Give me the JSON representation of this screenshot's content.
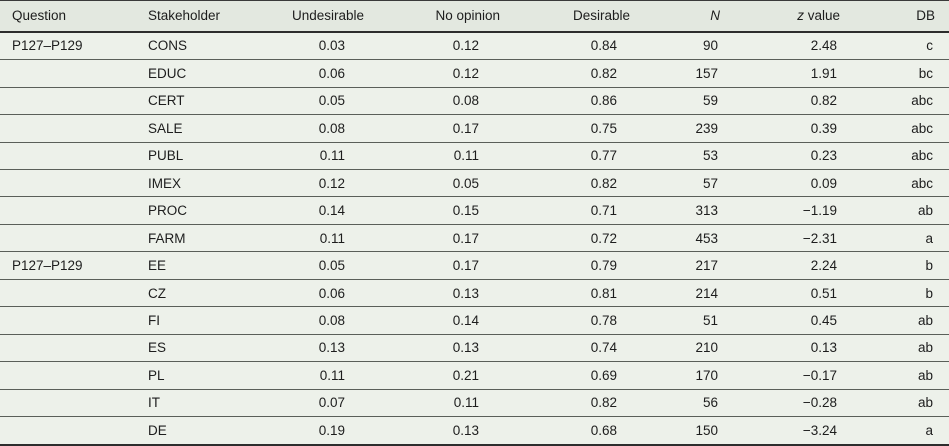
{
  "colors": {
    "header_bg": "#e3e8e0",
    "body_bg": "#edf1ea",
    "rule_dark": "#2d2d2d",
    "rule_light": "#5a5f59",
    "text": "#1d1d1d"
  },
  "header": {
    "question": "Question",
    "stakeholder": "Stakeholder",
    "undesirable": "Undesirable",
    "no_opinion": "No opinion",
    "desirable": "Desirable",
    "n_italic": "N",
    "z_italic": "z",
    "z_rest": " value",
    "db": "DB"
  },
  "rows": [
    [
      "P127–P129",
      "CONS",
      "0.03",
      "0.12",
      "0.84",
      "90",
      "2.48",
      "c"
    ],
    [
      "",
      "EDUC",
      "0.06",
      "0.12",
      "0.82",
      "157",
      "1.91",
      "bc"
    ],
    [
      "",
      "CERT",
      "0.05",
      "0.08",
      "0.86",
      "59",
      "0.82",
      "abc"
    ],
    [
      "",
      "SALE",
      "0.08",
      "0.17",
      "0.75",
      "239",
      "0.39",
      "abc"
    ],
    [
      "",
      "PUBL",
      "0.11",
      "0.11",
      "0.77",
      "53",
      "0.23",
      "abc"
    ],
    [
      "",
      "IMEX",
      "0.12",
      "0.05",
      "0.82",
      "57",
      "0.09",
      "abc"
    ],
    [
      "",
      "PROC",
      "0.14",
      "0.15",
      "0.71",
      "313",
      "−1.19",
      "ab"
    ],
    [
      "",
      "FARM",
      "0.11",
      "0.17",
      "0.72",
      "453",
      "−2.31",
      "a"
    ],
    [
      "P127–P129",
      "EE",
      "0.05",
      "0.17",
      "0.79",
      "217",
      "2.24",
      "b"
    ],
    [
      "",
      "CZ",
      "0.06",
      "0.13",
      "0.81",
      "214",
      "0.51",
      "b"
    ],
    [
      "",
      "FI",
      "0.08",
      "0.14",
      "0.78",
      "51",
      "0.45",
      "ab"
    ],
    [
      "",
      "ES",
      "0.13",
      "0.13",
      "0.74",
      "210",
      "0.13",
      "ab"
    ],
    [
      "",
      "PL",
      "0.11",
      "0.21",
      "0.69",
      "170",
      "−0.17",
      "ab"
    ],
    [
      "",
      "IT",
      "0.07",
      "0.11",
      "0.82",
      "56",
      "−0.28",
      "ab"
    ],
    [
      "",
      "DE",
      "0.19",
      "0.13",
      "0.68",
      "150",
      "−3.24",
      "a"
    ]
  ]
}
